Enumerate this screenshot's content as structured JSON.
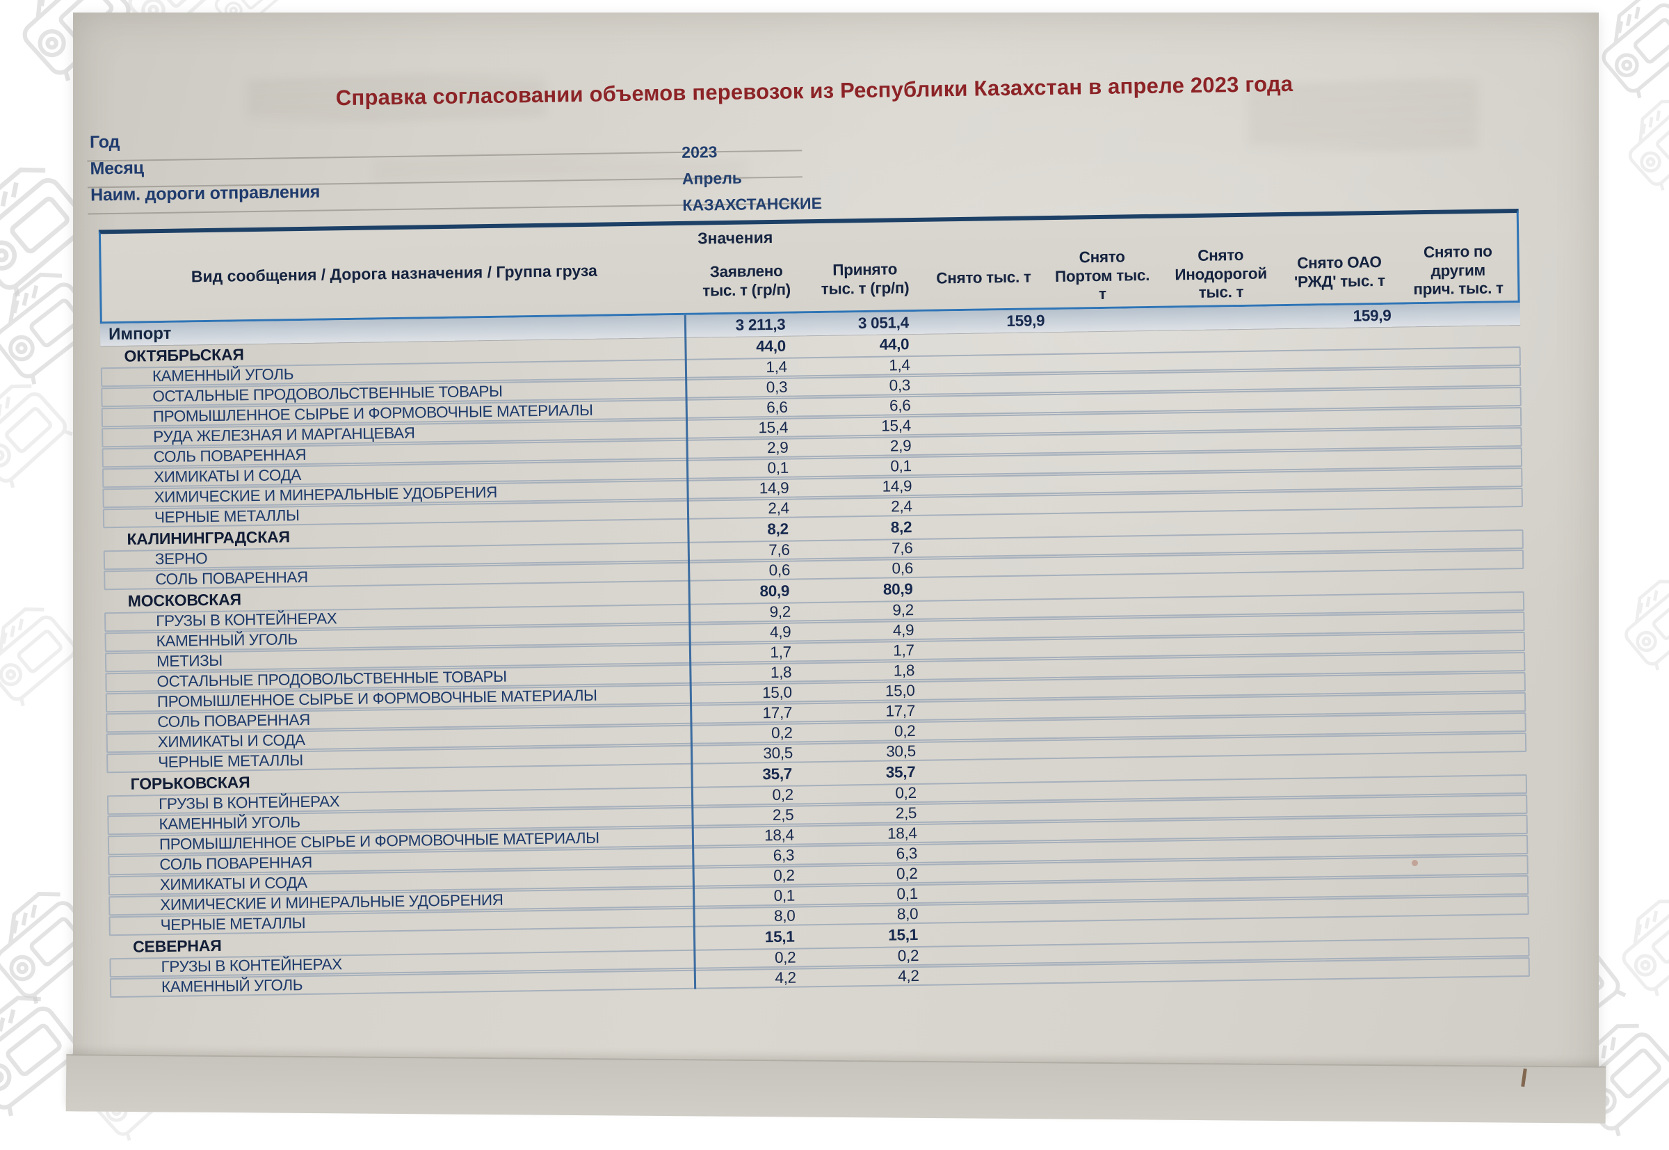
{
  "document": {
    "title": "Справка согласовании объемов перевозок из Республики Казахстан в апреле 2023 года",
    "fields": [
      {
        "label": "Год",
        "value": "2023"
      },
      {
        "label": "Месяц",
        "value": "Апрель"
      },
      {
        "label": "Наим. дороги отправления",
        "value": "КАЗАХСТАНСКИЕ"
      }
    ],
    "table": {
      "main_column_header": "Вид сообщения / Дорога назначения / Группа груза",
      "values_group_header": "Значения",
      "value_columns": [
        "Заявлено тыс. т (гр/п)",
        "Принято тыс. т (гр/п)",
        "Снято тыс. т",
        "Снято Портом тыс. т",
        "Снято Инодорогой тыс. т",
        "Снято ОАО 'РЖД' тыс. т",
        "Снято по другим прич. тыс. т"
      ],
      "rows": [
        {
          "label": "Импорт",
          "level": "total",
          "values": [
            "3 211,3",
            "3 051,4",
            "159,9",
            "",
            "",
            "159,9",
            ""
          ]
        },
        {
          "label": "ОКТЯБРЬСКАЯ",
          "level": "section",
          "values": [
            "44,0",
            "44,0",
            "",
            "",
            "",
            "",
            ""
          ]
        },
        {
          "label": "КАМЕННЫЙ УГОЛЬ",
          "level": "detail",
          "values": [
            "1,4",
            "1,4",
            "",
            "",
            "",
            "",
            ""
          ]
        },
        {
          "label": "ОСТАЛЬНЫЕ ПРОДОВОЛЬСТВЕННЫЕ ТОВАРЫ",
          "level": "detail",
          "values": [
            "0,3",
            "0,3",
            "",
            "",
            "",
            "",
            ""
          ]
        },
        {
          "label": "ПРОМЫШЛЕННОЕ СЫРЬЕ И ФОРМОВОЧНЫЕ МАТЕРИАЛЫ",
          "level": "detail",
          "values": [
            "6,6",
            "6,6",
            "",
            "",
            "",
            "",
            ""
          ]
        },
        {
          "label": "РУДА ЖЕЛЕЗНАЯ И МАРГАНЦЕВАЯ",
          "level": "detail",
          "values": [
            "15,4",
            "15,4",
            "",
            "",
            "",
            "",
            ""
          ]
        },
        {
          "label": "СОЛЬ ПОВАРЕННАЯ",
          "level": "detail",
          "values": [
            "2,9",
            "2,9",
            "",
            "",
            "",
            "",
            ""
          ]
        },
        {
          "label": "ХИМИКАТЫ И СОДА",
          "level": "detail",
          "values": [
            "0,1",
            "0,1",
            "",
            "",
            "",
            "",
            ""
          ]
        },
        {
          "label": "ХИМИЧЕСКИЕ И МИНЕРАЛЬНЫЕ УДОБРЕНИЯ",
          "level": "detail",
          "values": [
            "14,9",
            "14,9",
            "",
            "",
            "",
            "",
            ""
          ]
        },
        {
          "label": "ЧЕРНЫЕ МЕТАЛЛЫ",
          "level": "detail",
          "values": [
            "2,4",
            "2,4",
            "",
            "",
            "",
            "",
            ""
          ]
        },
        {
          "label": "КАЛИНИНГРАДСКАЯ",
          "level": "section",
          "values": [
            "8,2",
            "8,2",
            "",
            "",
            "",
            "",
            ""
          ]
        },
        {
          "label": "ЗЕРНО",
          "level": "detail",
          "values": [
            "7,6",
            "7,6",
            "",
            "",
            "",
            "",
            ""
          ]
        },
        {
          "label": "СОЛЬ ПОВАРЕННАЯ",
          "level": "detail",
          "values": [
            "0,6",
            "0,6",
            "",
            "",
            "",
            "",
            ""
          ]
        },
        {
          "label": "МОСКОВСКАЯ",
          "level": "section",
          "values": [
            "80,9",
            "80,9",
            "",
            "",
            "",
            "",
            ""
          ]
        },
        {
          "label": "ГРУЗЫ В КОНТЕЙНЕРАХ",
          "level": "detail",
          "values": [
            "9,2",
            "9,2",
            "",
            "",
            "",
            "",
            ""
          ]
        },
        {
          "label": "КАМЕННЫЙ УГОЛЬ",
          "level": "detail",
          "values": [
            "4,9",
            "4,9",
            "",
            "",
            "",
            "",
            ""
          ]
        },
        {
          "label": "МЕТИЗЫ",
          "level": "detail",
          "values": [
            "1,7",
            "1,7",
            "",
            "",
            "",
            "",
            ""
          ]
        },
        {
          "label": "ОСТАЛЬНЫЕ ПРОДОВОЛЬСТВЕННЫЕ ТОВАРЫ",
          "level": "detail",
          "values": [
            "1,8",
            "1,8",
            "",
            "",
            "",
            "",
            ""
          ]
        },
        {
          "label": "ПРОМЫШЛЕННОЕ СЫРЬЕ И ФОРМОВОЧНЫЕ МАТЕРИАЛЫ",
          "level": "detail",
          "values": [
            "15,0",
            "15,0",
            "",
            "",
            "",
            "",
            ""
          ]
        },
        {
          "label": "СОЛЬ ПОВАРЕННАЯ",
          "level": "detail",
          "values": [
            "17,7",
            "17,7",
            "",
            "",
            "",
            "",
            ""
          ]
        },
        {
          "label": "ХИМИКАТЫ И СОДА",
          "level": "detail",
          "values": [
            "0,2",
            "0,2",
            "",
            "",
            "",
            "",
            ""
          ]
        },
        {
          "label": "ЧЕРНЫЕ МЕТАЛЛЫ",
          "level": "detail",
          "values": [
            "30,5",
            "30,5",
            "",
            "",
            "",
            "",
            ""
          ]
        },
        {
          "label": "ГОРЬКОВСКАЯ",
          "level": "section",
          "values": [
            "35,7",
            "35,7",
            "",
            "",
            "",
            "",
            ""
          ]
        },
        {
          "label": "ГРУЗЫ В КОНТЕЙНЕРАХ",
          "level": "detail",
          "values": [
            "0,2",
            "0,2",
            "",
            "",
            "",
            "",
            ""
          ]
        },
        {
          "label": "КАМЕННЫЙ УГОЛЬ",
          "level": "detail",
          "values": [
            "2,5",
            "2,5",
            "",
            "",
            "",
            "",
            ""
          ]
        },
        {
          "label": "ПРОМЫШЛЕННОЕ СЫРЬЕ И ФОРМОВОЧНЫЕ МАТЕРИАЛЫ",
          "level": "detail",
          "values": [
            "18,4",
            "18,4",
            "",
            "",
            "",
            "",
            ""
          ]
        },
        {
          "label": "СОЛЬ ПОВАРЕННАЯ",
          "level": "detail",
          "values": [
            "6,3",
            "6,3",
            "",
            "",
            "",
            "",
            ""
          ]
        },
        {
          "label": "ХИМИКАТЫ И СОДА",
          "level": "detail",
          "values": [
            "0,2",
            "0,2",
            "",
            "",
            "",
            "",
            ""
          ]
        },
        {
          "label": "ХИМИЧЕСКИЕ И МИНЕРАЛЬНЫЕ УДОБРЕНИЯ",
          "level": "detail",
          "values": [
            "0,1",
            "0,1",
            "",
            "",
            "",
            "",
            ""
          ]
        },
        {
          "label": "ЧЕРНЫЕ МЕТАЛЛЫ",
          "level": "detail",
          "values": [
            "8,0",
            "8,0",
            "",
            "",
            "",
            "",
            ""
          ]
        },
        {
          "label": "СЕВЕРНАЯ",
          "level": "section",
          "values": [
            "15,1",
            "15,1",
            "",
            "",
            "",
            "",
            ""
          ]
        },
        {
          "label": "ГРУЗЫ В КОНТЕЙНЕРАХ",
          "level": "detail",
          "values": [
            "0,2",
            "0,2",
            "",
            "",
            "",
            "",
            ""
          ]
        },
        {
          "label": "КАМЕННЫЙ УГОЛЬ",
          "level": "detail",
          "values": [
            "4,2",
            "4,2",
            "",
            "",
            "",
            "",
            ""
          ]
        }
      ]
    }
  }
}
